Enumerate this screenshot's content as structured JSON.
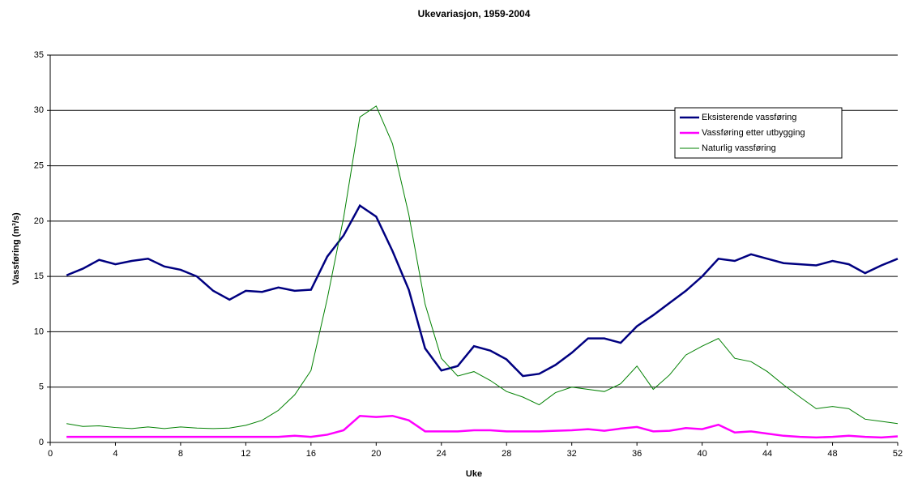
{
  "chart_data": {
    "type": "line",
    "title": "Ukevariasjon, 1959-2004",
    "x_label": "Uke",
    "y_label": "Vassføring (m³/s)",
    "x": [
      1,
      2,
      3,
      4,
      5,
      6,
      7,
      8,
      9,
      10,
      11,
      12,
      13,
      14,
      15,
      16,
      17,
      18,
      19,
      20,
      21,
      22,
      23,
      24,
      25,
      26,
      27,
      28,
      29,
      30,
      31,
      32,
      33,
      34,
      35,
      36,
      37,
      38,
      39,
      40,
      41,
      42,
      43,
      44,
      45,
      46,
      47,
      48,
      49,
      50,
      51,
      52
    ],
    "series": [
      {
        "name": "Eksisterende vassføring",
        "color": "#000080",
        "width": 2.5,
        "values": [
          15.1,
          15.7,
          16.5,
          16.1,
          16.4,
          16.6,
          15.9,
          15.6,
          15.0,
          13.7,
          12.9,
          13.7,
          13.6,
          14.0,
          13.7,
          13.8,
          16.8,
          18.7,
          21.4,
          20.4,
          17.3,
          13.8,
          8.5,
          6.5,
          6.9,
          8.7,
          8.3,
          7.5,
          6.0,
          6.2,
          7.0,
          8.1,
          9.4,
          9.4,
          9.0,
          10.5,
          11.5,
          12.6,
          13.7,
          15.0,
          16.6,
          16.4,
          17.0,
          16.6,
          16.2,
          16.1,
          16.0,
          16.4,
          16.1,
          15.3,
          16.0,
          16.6
        ]
      },
      {
        "name": "Vassføring etter utbygging",
        "color": "#ff00ff",
        "width": 2.5,
        "values": [
          0.5,
          0.5,
          0.5,
          0.5,
          0.5,
          0.5,
          0.5,
          0.5,
          0.5,
          0.5,
          0.5,
          0.5,
          0.5,
          0.5,
          0.6,
          0.5,
          0.7,
          1.1,
          2.4,
          2.3,
          2.4,
          2.0,
          1.0,
          1.0,
          1.0,
          1.1,
          1.1,
          1.0,
          1.0,
          1.0,
          1.05,
          1.1,
          1.2,
          1.05,
          1.25,
          1.4,
          1.0,
          1.05,
          1.3,
          1.2,
          1.6,
          0.9,
          1.0,
          0.8,
          0.6,
          0.5,
          0.45,
          0.5,
          0.6,
          0.5,
          0.45,
          0.55
        ]
      },
      {
        "name": "Naturlig vassføring",
        "color": "#008000",
        "width": 1,
        "values": [
          1.7,
          1.45,
          1.5,
          1.35,
          1.25,
          1.4,
          1.25,
          1.4,
          1.3,
          1.25,
          1.3,
          1.55,
          2.0,
          2.9,
          4.3,
          6.5,
          13.0,
          20.3,
          29.4,
          30.4,
          27.0,
          20.6,
          12.5,
          7.6,
          6.0,
          6.4,
          5.6,
          4.6,
          4.1,
          3.4,
          4.5,
          5.0,
          4.8,
          4.6,
          5.3,
          6.9,
          4.8,
          6.1,
          7.9,
          8.7,
          9.4,
          7.6,
          7.3,
          6.4,
          5.2,
          4.1,
          3.05,
          3.25,
          3.05,
          2.1,
          1.9,
          1.7
        ]
      }
    ],
    "xlim": [
      0,
      52
    ],
    "xticks": [
      0,
      4,
      8,
      12,
      16,
      20,
      24,
      28,
      32,
      36,
      40,
      44,
      48,
      52
    ],
    "ylim": [
      0,
      35
    ],
    "yticks": [
      0,
      5,
      10,
      15,
      20,
      25,
      30,
      35
    ],
    "grid": true,
    "legend": "upper right"
  }
}
